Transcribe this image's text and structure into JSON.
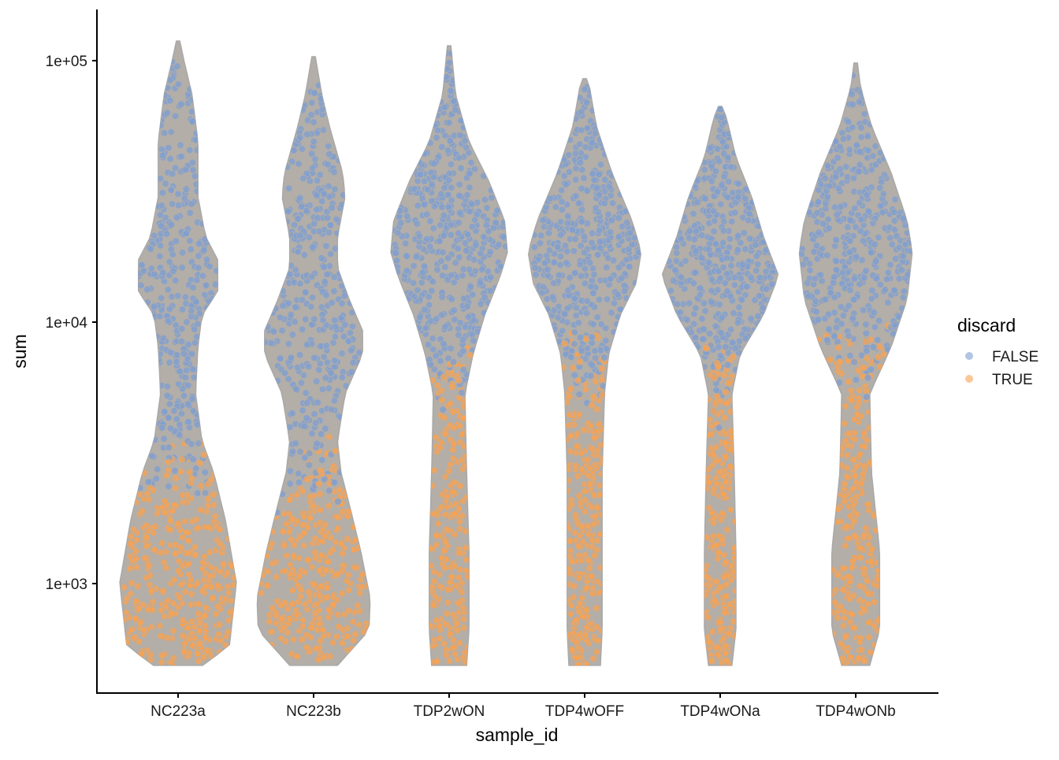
{
  "chart_data": {
    "type": "violin",
    "title": "",
    "xlabel": "sample_id",
    "ylabel": "sum",
    "yscale": "log10",
    "ylim_log10": [
      2.58,
      5.196
    ],
    "yticks": [
      {
        "value": 1000,
        "label": "1e+03"
      },
      {
        "value": 10000,
        "label": "1e+04"
      },
      {
        "value": 100000,
        "label": "1e+05"
      }
    ],
    "categories": [
      "NC223a",
      "NC223b",
      "TDP2wON",
      "TDP4wOFF",
      "TDP4wONa",
      "TDP4wONb"
    ],
    "legend": {
      "title": "discard",
      "placement": "right",
      "entries": [
        {
          "label": "FALSE",
          "color": "#7f9fcf"
        },
        {
          "label": "TRUE",
          "color": "#f6a254"
        }
      ]
    },
    "violin_fill": "#b3aea8",
    "violins": [
      {
        "sample": "NC223a",
        "discard_threshold_log10": 3.45,
        "profile": [
          [
            2.687,
            0.42
          ],
          [
            2.762,
            0.88
          ],
          [
            3.003,
            1.0
          ],
          [
            3.244,
            0.81
          ],
          [
            3.425,
            0.61
          ],
          [
            3.545,
            0.41
          ],
          [
            3.726,
            0.3
          ],
          [
            3.907,
            0.34
          ],
          [
            4.027,
            0.41
          ],
          [
            4.117,
            0.68
          ],
          [
            4.238,
            0.68
          ],
          [
            4.328,
            0.47
          ],
          [
            4.479,
            0.34
          ],
          [
            4.69,
            0.34
          ],
          [
            4.87,
            0.24
          ],
          [
            4.991,
            0.11
          ],
          [
            5.075,
            0.03
          ]
        ]
      },
      {
        "sample": "NC223b",
        "discard_threshold_log10": 3.42,
        "profile": [
          [
            2.687,
            0.41
          ],
          [
            2.822,
            0.95
          ],
          [
            2.943,
            0.97
          ],
          [
            3.123,
            0.81
          ],
          [
            3.304,
            0.61
          ],
          [
            3.425,
            0.47
          ],
          [
            3.545,
            0.41
          ],
          [
            3.726,
            0.54
          ],
          [
            3.877,
            0.84
          ],
          [
            3.967,
            0.84
          ],
          [
            4.087,
            0.61
          ],
          [
            4.208,
            0.41
          ],
          [
            4.328,
            0.41
          ],
          [
            4.479,
            0.54
          ],
          [
            4.569,
            0.5
          ],
          [
            4.75,
            0.27
          ],
          [
            4.87,
            0.14
          ],
          [
            5.015,
            0.03
          ]
        ]
      },
      {
        "sample": "TDP2wON",
        "discard_threshold_log10": 3.79,
        "profile": [
          [
            2.687,
            0.3
          ],
          [
            2.822,
            0.34
          ],
          [
            3.123,
            0.34
          ],
          [
            3.425,
            0.3
          ],
          [
            3.726,
            0.27
          ],
          [
            3.877,
            0.41
          ],
          [
            4.027,
            0.61
          ],
          [
            4.178,
            0.88
          ],
          [
            4.268,
            1.0
          ],
          [
            4.389,
            0.95
          ],
          [
            4.539,
            0.68
          ],
          [
            4.69,
            0.34
          ],
          [
            4.87,
            0.11
          ],
          [
            5.057,
            0.03
          ]
        ]
      },
      {
        "sample": "TDP4wOFF",
        "discard_threshold_log10": 3.82,
        "profile": [
          [
            2.687,
            0.27
          ],
          [
            2.822,
            0.3
          ],
          [
            3.123,
            0.3
          ],
          [
            3.425,
            0.3
          ],
          [
            3.726,
            0.34
          ],
          [
            3.877,
            0.41
          ],
          [
            4.027,
            0.61
          ],
          [
            4.148,
            0.88
          ],
          [
            4.268,
            0.97
          ],
          [
            4.389,
            0.81
          ],
          [
            4.569,
            0.47
          ],
          [
            4.75,
            0.2
          ],
          [
            4.916,
            0.07
          ],
          [
            4.931,
            0.03
          ]
        ]
      },
      {
        "sample": "TDP4wONa",
        "discard_threshold_log10": 3.76,
        "profile": [
          [
            2.687,
            0.2
          ],
          [
            2.822,
            0.27
          ],
          [
            3.123,
            0.27
          ],
          [
            3.425,
            0.24
          ],
          [
            3.726,
            0.2
          ],
          [
            3.877,
            0.34
          ],
          [
            4.027,
            0.74
          ],
          [
            4.178,
            1.0
          ],
          [
            4.328,
            0.74
          ],
          [
            4.479,
            0.54
          ],
          [
            4.63,
            0.27
          ],
          [
            4.78,
            0.11
          ],
          [
            4.825,
            0.03
          ]
        ]
      },
      {
        "sample": "TDP4wONb",
        "discard_threshold_log10": 3.85,
        "profile": [
          [
            2.687,
            0.24
          ],
          [
            2.822,
            0.41
          ],
          [
            3.123,
            0.41
          ],
          [
            3.425,
            0.27
          ],
          [
            3.726,
            0.24
          ],
          [
            3.907,
            0.61
          ],
          [
            4.087,
            0.88
          ],
          [
            4.268,
            0.97
          ],
          [
            4.389,
            0.88
          ],
          [
            4.569,
            0.61
          ],
          [
            4.75,
            0.27
          ],
          [
            4.901,
            0.08
          ],
          [
            4.991,
            0.03
          ]
        ]
      }
    ]
  }
}
